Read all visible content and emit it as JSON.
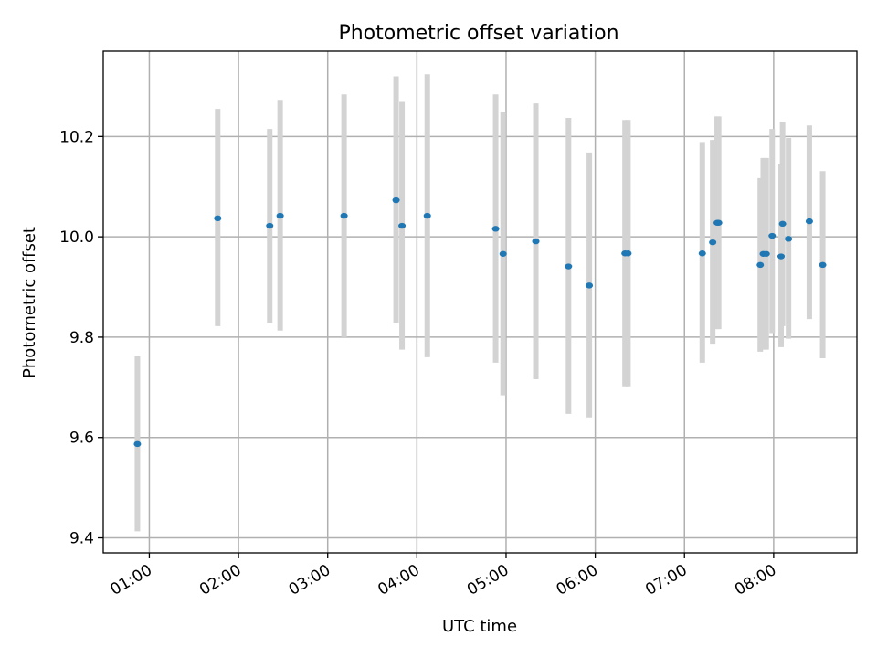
{
  "chart_data": {
    "type": "scatter",
    "title": "Photometric offset variation",
    "xlabel": "UTC time",
    "ylabel": "Photometric offset",
    "xlim": [
      "00:29",
      "08:56"
    ],
    "ylim": [
      9.37,
      10.37
    ],
    "grid": true,
    "x_ticks": [
      "01:00",
      "02:00",
      "03:00",
      "04:00",
      "05:00",
      "06:00",
      "07:00",
      "08:00"
    ],
    "y_ticks": [
      9.4,
      9.6,
      9.8,
      10.0,
      10.2
    ],
    "y_tick_labels": [
      "9.4",
      "9.6",
      "9.8",
      "10.0",
      "10.2"
    ],
    "series": [
      {
        "x": [
          "00:52",
          "01:46",
          "02:21",
          "02:28",
          "03:11",
          "03:46",
          "03:50",
          "04:07",
          "04:53",
          "04:58",
          "05:20",
          "05:42",
          "05:56",
          "06:20",
          "06:22",
          "07:12",
          "07:19",
          "07:22",
          "07:23",
          "07:51",
          "07:53",
          "07:55",
          "07:59",
          "08:05",
          "08:06",
          "08:10",
          "08:24",
          "08:33"
        ],
        "y": [
          9.587,
          10.037,
          10.022,
          10.042,
          10.042,
          10.073,
          10.022,
          10.042,
          10.016,
          9.966,
          9.991,
          9.941,
          9.903,
          9.967,
          9.967,
          9.967,
          9.989,
          10.028,
          10.028,
          9.944,
          9.966,
          9.966,
          10.002,
          9.961,
          10.026,
          9.996,
          10.031,
          9.944
        ],
        "yerr_low": [
          9.413,
          9.822,
          9.829,
          9.813,
          9.8,
          9.829,
          9.775,
          9.76,
          9.749,
          9.684,
          9.716,
          9.647,
          9.64,
          9.702,
          9.702,
          9.749,
          9.787,
          9.816,
          9.816,
          9.771,
          9.775,
          9.775,
          9.808,
          9.78,
          9.822,
          9.797,
          9.836,
          9.758
        ],
        "yerr_high": [
          9.762,
          10.255,
          10.215,
          10.273,
          10.284,
          10.32,
          10.269,
          10.324,
          10.284,
          10.248,
          10.266,
          10.237,
          10.168,
          10.233,
          10.233,
          10.189,
          10.193,
          10.24,
          10.24,
          10.117,
          10.157,
          10.157,
          10.215,
          10.146,
          10.229,
          10.197,
          10.222,
          10.131
        ]
      }
    ],
    "colors": {
      "points": "#1f77b4",
      "errorbars": "#d3d3d3",
      "grid": "#b0b0b0"
    }
  }
}
